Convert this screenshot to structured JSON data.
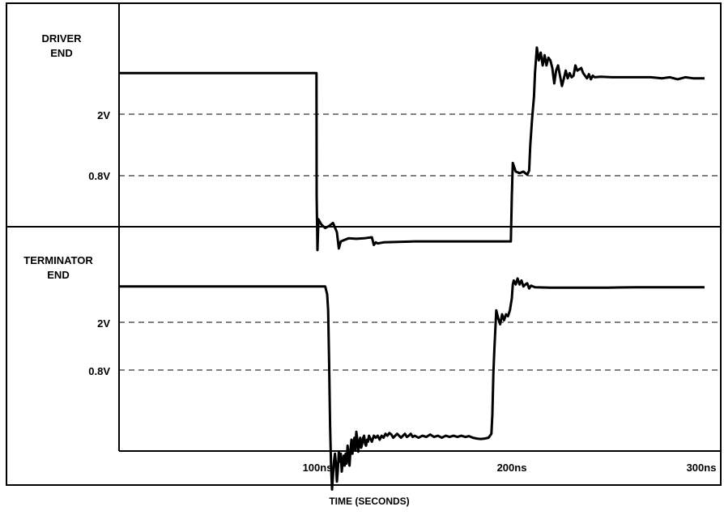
{
  "chart_data": [
    {
      "type": "line",
      "panel_label": [
        "DRIVER",
        "END"
      ],
      "threshold_labels": [
        "2V",
        "0.8V"
      ],
      "thresholds": [
        2.0,
        0.8
      ],
      "xlim": [
        0,
        300
      ],
      "x_unit": "ns",
      "ylim": [
        -0.9,
        3.5
      ],
      "series": [
        {
          "points": [
            [
              0,
              2.8
            ],
            [
              99.5,
              2.8
            ],
            [
              99.6,
              0.4
            ],
            [
              100,
              -0.65
            ],
            [
              100.5,
              -0.05
            ],
            [
              102,
              -0.15
            ],
            [
              104,
              -0.22
            ],
            [
              106,
              -0.18
            ],
            [
              108,
              -0.12
            ],
            [
              110,
              -0.3
            ],
            [
              111,
              -0.62
            ],
            [
              112,
              -0.48
            ],
            [
              116,
              -0.42
            ],
            [
              120,
              -0.43
            ],
            [
              124,
              -0.42
            ],
            [
              128,
              -0.4
            ],
            [
              129,
              -0.55
            ],
            [
              130,
              -0.5
            ],
            [
              131,
              -0.52
            ],
            [
              134,
              -0.5
            ],
            [
              150,
              -0.48
            ],
            [
              170,
              -0.48
            ],
            [
              190,
              -0.48
            ],
            [
              199.5,
              -0.48
            ],
            [
              200,
              0.4
            ],
            [
              200.5,
              1.05
            ],
            [
              202,
              0.88
            ],
            [
              204,
              0.85
            ],
            [
              206,
              0.88
            ],
            [
              208,
              0.82
            ],
            [
              209,
              0.9
            ],
            [
              209.6,
              1.4
            ],
            [
              210.5,
              1.9
            ],
            [
              211.5,
              2.35
            ],
            [
              212,
              2.8
            ],
            [
              213,
              3.3
            ],
            [
              214,
              3.05
            ],
            [
              215,
              3.2
            ],
            [
              216,
              2.95
            ],
            [
              217,
              3.15
            ],
            [
              218,
              2.95
            ],
            [
              219,
              3.1
            ],
            [
              220,
              3.05
            ],
            [
              221,
              2.9
            ],
            [
              222,
              2.6
            ],
            [
              223,
              2.85
            ],
            [
              224,
              2.95
            ],
            [
              225,
              2.75
            ],
            [
              226,
              2.55
            ],
            [
              227,
              2.7
            ],
            [
              228,
              2.85
            ],
            [
              229,
              2.7
            ],
            [
              230,
              2.8
            ],
            [
              231,
              2.72
            ],
            [
              232,
              2.75
            ],
            [
              233,
              2.95
            ],
            [
              234,
              2.85
            ],
            [
              236,
              2.9
            ],
            [
              237,
              2.8
            ],
            [
              238,
              2.75
            ],
            [
              239,
              2.7
            ],
            [
              240,
              2.78
            ],
            [
              241,
              2.68
            ],
            [
              242,
              2.75
            ],
            [
              243,
              2.72
            ],
            [
              246,
              2.73
            ],
            [
              252,
              2.72
            ],
            [
              262,
              2.72
            ],
            [
              272,
              2.72
            ],
            [
              278,
              2.7
            ],
            [
              282,
              2.72
            ],
            [
              286,
              2.68
            ],
            [
              290,
              2.72
            ],
            [
              294,
              2.7
            ],
            [
              297,
              2.7
            ],
            [
              300,
              2.7
            ]
          ]
        }
      ]
    },
    {
      "type": "line",
      "panel_label": [
        "TERMINATOR",
        "END"
      ],
      "threshold_labels": [
        "2V",
        "0.8V"
      ],
      "thresholds": [
        2.0,
        0.8
      ],
      "xlim": [
        0,
        300
      ],
      "x_unit": "ns",
      "ylim": [
        -2.5,
        3.5
      ],
      "series": [
        {
          "points": [
            [
              0,
              2.9
            ],
            [
              104,
              2.9
            ],
            [
              105,
              2.7
            ],
            [
              105.5,
              2.3
            ],
            [
              106,
              1.0
            ],
            [
              106.5,
              -0.6
            ],
            [
              107,
              -1.6
            ],
            [
              107.5,
              -2.2
            ],
            [
              108,
              -1.85
            ],
            [
              108.5,
              -1.5
            ],
            [
              109,
              -1.3
            ],
            [
              109.5,
              -1.55
            ],
            [
              110,
              -2.0
            ],
            [
              110.5,
              -1.7
            ],
            [
              111,
              -1.25
            ],
            [
              111.5,
              -1.5
            ],
            [
              112,
              -1.3
            ],
            [
              112.5,
              -1.75
            ],
            [
              113,
              -1.5
            ],
            [
              113.5,
              -1.35
            ],
            [
              114,
              -1.6
            ],
            [
              114.5,
              -1.3
            ],
            [
              115,
              -1.55
            ],
            [
              115.5,
              -1.1
            ],
            [
              116,
              -1.35
            ],
            [
              116.5,
              -1.6
            ],
            [
              117,
              -1.2
            ],
            [
              117.5,
              -0.95
            ],
            [
              118,
              -1.3
            ],
            [
              118.5,
              -1.05
            ],
            [
              119,
              -0.9
            ],
            [
              119.5,
              -1.2
            ],
            [
              120,
              -0.75
            ],
            [
              120.5,
              -0.95
            ],
            [
              121,
              -1.25
            ],
            [
              121.5,
              -1.0
            ],
            [
              122,
              -0.9
            ],
            [
              122.5,
              -1.15
            ],
            [
              123,
              -1.05
            ],
            [
              123.5,
              -0.9
            ],
            [
              124,
              -0.85
            ],
            [
              124.5,
              -1.05
            ],
            [
              125,
              -1.1
            ],
            [
              125.5,
              -0.95
            ],
            [
              126,
              -1.0
            ],
            [
              126.5,
              -0.85
            ],
            [
              127,
              -0.9
            ],
            [
              128,
              -1.0
            ],
            [
              129,
              -0.85
            ],
            [
              130,
              -0.9
            ],
            [
              131,
              -0.85
            ],
            [
              132,
              -0.95
            ],
            [
              133,
              -0.85
            ],
            [
              134,
              -0.9
            ],
            [
              135,
              -0.8
            ],
            [
              136,
              -0.85
            ],
            [
              137,
              -0.78
            ],
            [
              138,
              -0.82
            ],
            [
              139,
              -0.9
            ],
            [
              140,
              -0.85
            ],
            [
              141,
              -0.8
            ],
            [
              142,
              -0.85
            ],
            [
              143,
              -0.9
            ],
            [
              144,
              -0.85
            ],
            [
              145,
              -0.8
            ],
            [
              146,
              -0.88
            ],
            [
              147,
              -0.85
            ],
            [
              148,
              -0.8
            ],
            [
              149,
              -0.88
            ],
            [
              150,
              -0.85
            ],
            [
              152,
              -0.9
            ],
            [
              154,
              -0.85
            ],
            [
              156,
              -0.88
            ],
            [
              158,
              -0.82
            ],
            [
              160,
              -0.88
            ],
            [
              162,
              -0.85
            ],
            [
              164,
              -0.9
            ],
            [
              166,
              -0.85
            ],
            [
              168,
              -0.88
            ],
            [
              170,
              -0.85
            ],
            [
              172,
              -0.88
            ],
            [
              174,
              -0.85
            ],
            [
              176,
              -0.88
            ],
            [
              178,
              -0.86
            ],
            [
              180,
              -0.9
            ],
            [
              182,
              -0.92
            ],
            [
              184,
              -0.93
            ],
            [
              186,
              -0.92
            ],
            [
              188,
              -0.9
            ],
            [
              189.5,
              -0.8
            ],
            [
              190,
              -0.3
            ],
            [
              190.5,
              0.7
            ],
            [
              191,
              1.3
            ],
            [
              191.5,
              1.8
            ],
            [
              192,
              2.3
            ],
            [
              193,
              2.1
            ],
            [
              194,
              1.95
            ],
            [
              195,
              2.2
            ],
            [
              196,
              2.05
            ],
            [
              197,
              2.2
            ],
            [
              198,
              2.15
            ],
            [
              199,
              2.3
            ],
            [
              200,
              2.6
            ],
            [
              200.5,
              2.95
            ],
            [
              201,
              3.05
            ],
            [
              202,
              2.95
            ],
            [
              203,
              3.1
            ],
            [
              204,
              2.95
            ],
            [
              205,
              3.05
            ],
            [
              206,
              2.9
            ],
            [
              207,
              2.95
            ],
            [
              208,
              2.98
            ],
            [
              209,
              2.85
            ],
            [
              210,
              2.92
            ],
            [
              211,
              2.9
            ],
            [
              212,
              2.88
            ],
            [
              220,
              2.87
            ],
            [
              235,
              2.87
            ],
            [
              250,
              2.87
            ],
            [
              265,
              2.88
            ],
            [
              280,
              2.88
            ],
            [
              300,
              2.88
            ]
          ]
        }
      ]
    }
  ],
  "x_ticks": [
    {
      "value": 100,
      "label": "100ns"
    },
    {
      "value": 200,
      "label": "200ns"
    },
    {
      "value": 300,
      "label": "300ns"
    }
  ],
  "xlabel": "TIME (SECONDS)",
  "colors": {
    "trace": "#000000",
    "frame": "#000000",
    "threshold": "#000000"
  }
}
